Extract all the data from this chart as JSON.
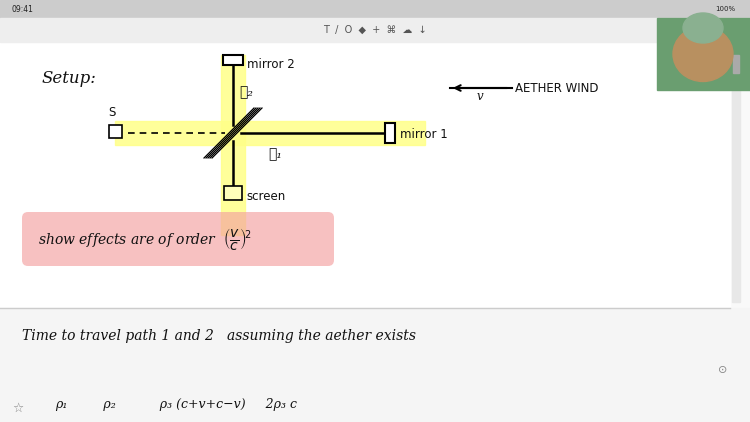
{
  "bg_color": "#f9f9f9",
  "setup_label": "Setup:",
  "mirror2_label": "mirror 2",
  "mirror1_label": "mirror 1",
  "aether_wind_label": "AETHER WIND",
  "aether_wind_v_label": "v",
  "source_label": "S",
  "screen_label": "screen",
  "l1_label": "ℓ₁",
  "l2_label": "ℓ₂",
  "highlight_yellow": "#ffff88",
  "highlight_pink": "#f4a0a0",
  "text_color": "#111111",
  "pink_box_text": "show effects are of order",
  "bottom_text": "Time to travel path 1 and 2   assuming the aether exists",
  "bottom_text2": "ρ₁         ρ₂           ρ₃ (c+v+c−v)     2ρ₃ c",
  "status_bar_color": "#cccccc",
  "toolbar_color": "#eeeeee",
  "separator_color": "#cccccc",
  "bottom_section_color": "#f5f5f5"
}
